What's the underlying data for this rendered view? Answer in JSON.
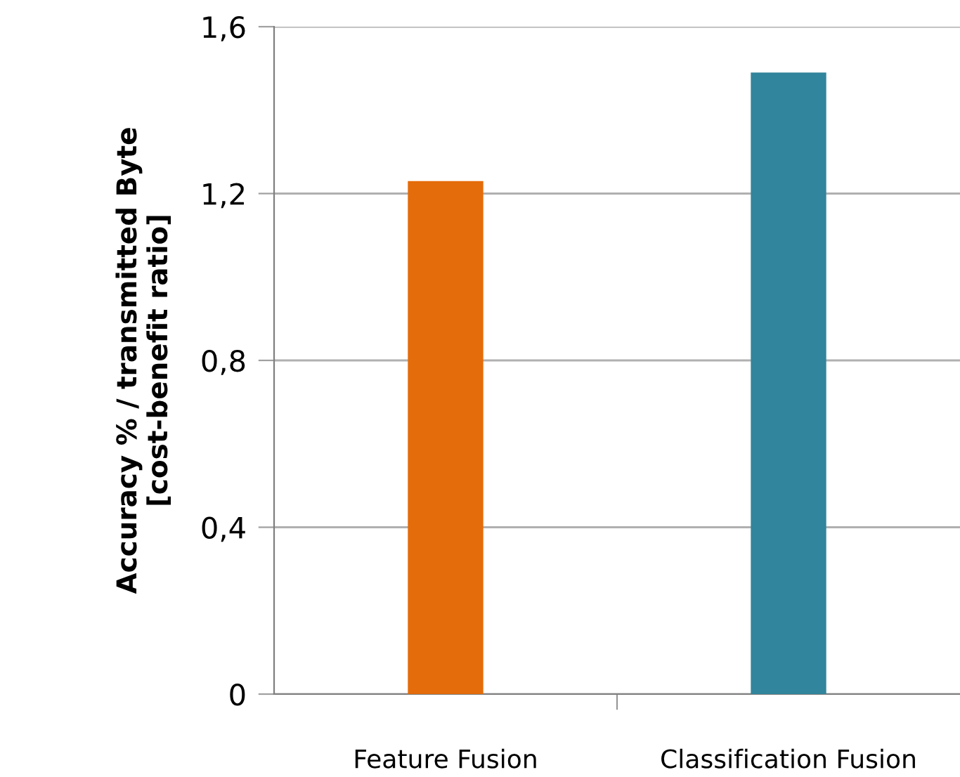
{
  "chart_data": {
    "type": "bar",
    "ylabel": "Accuracy % / transmitted Byte\n[cost-benefit ratio]",
    "categories": [
      "Feature Fusion",
      "Classification Fusion"
    ],
    "values": [
      1.23,
      1.49
    ],
    "colors": [
      "#e46c0a",
      "#31859c"
    ],
    "ylim": [
      0,
      1.6
    ],
    "yticks": [
      0,
      {
        "value": 0.4,
        "label": "0,4"
      },
      {
        "value": 0.8,
        "label": "0,8"
      },
      {
        "value": 1.2,
        "label": "1,2"
      },
      {
        "value": 1.6,
        "label": "1,6"
      }
    ],
    "grid": "y",
    "legend": false
  }
}
